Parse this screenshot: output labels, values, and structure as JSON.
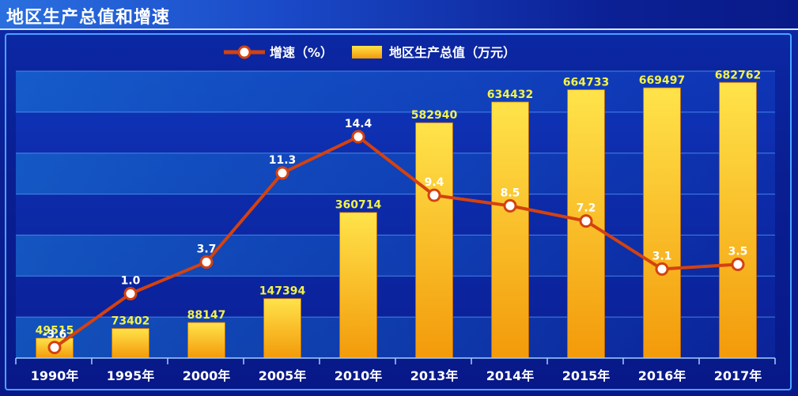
{
  "title": "地区生产总值和增速",
  "legend": {
    "line_label": "增速（%）",
    "bar_label": "地区生产总值（万元）"
  },
  "colors": {
    "bar_top": "#ffe34a",
    "bar_bottom": "#f39a0a",
    "line": "#d4420f",
    "bar_label": "#f3f24a",
    "line_label": "#ffffff",
    "axis_label": "#ffffff"
  },
  "chart_data": {
    "type": "bar",
    "categories": [
      "1990年",
      "1995年",
      "2000年",
      "2005年",
      "2010年",
      "2013年",
      "2014年",
      "2015年",
      "2016年",
      "2017年"
    ],
    "series": [
      {
        "name": "地区生产总值（万元）",
        "type": "bar",
        "values": [
          49515,
          73402,
          88147,
          147394,
          360714,
          582940,
          634432,
          664733,
          669497,
          682762
        ]
      },
      {
        "name": "增速（%）",
        "type": "line",
        "values": [
          -3.6,
          1.0,
          3.7,
          11.3,
          14.4,
          9.4,
          8.5,
          7.2,
          3.1,
          3.5
        ]
      }
    ],
    "bar_value_labels": [
      "49515",
      "73402",
      "88147",
      "147394",
      "360714",
      "582940",
      "634432",
      "664733",
      "669497",
      "682762"
    ],
    "line_value_labels": [
      "-3.6",
      "1.0",
      "3.7",
      "11.3",
      "14.4",
      "9.4",
      "8.5",
      "7.2",
      "3.1",
      "3.5"
    ],
    "bar_ylim": [
      0,
      700000
    ],
    "line_ylim": [
      -4.5,
      20
    ],
    "grid": true,
    "legend_position": "top-center"
  }
}
